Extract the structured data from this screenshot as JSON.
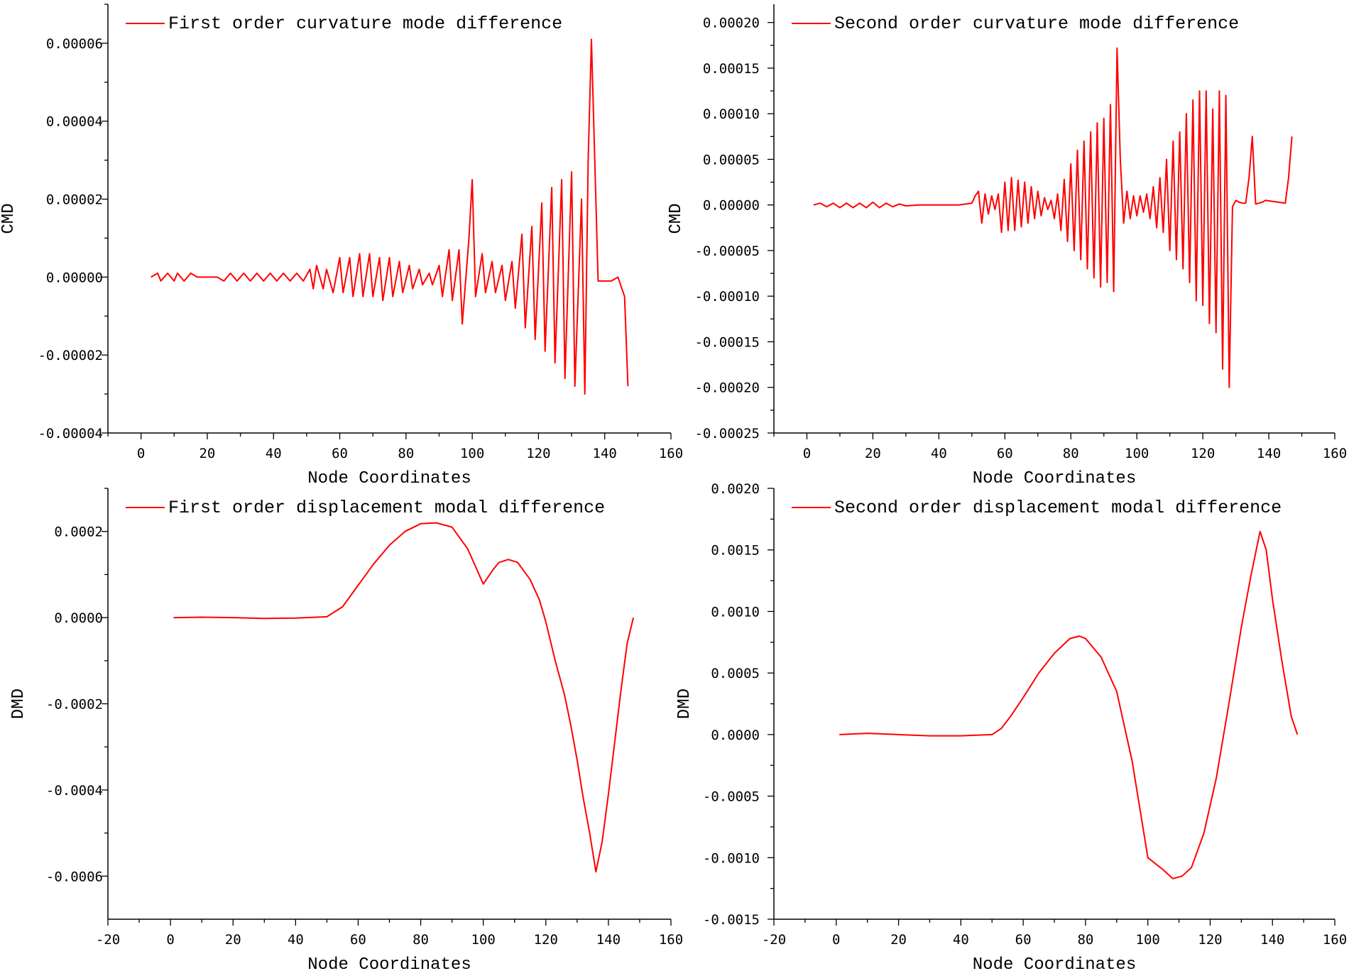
{
  "chart_data": [
    {
      "type": "line",
      "xlabel": "Node Coordinates",
      "ylabel": "CMD",
      "xlim": [
        -10,
        160
      ],
      "ylim": [
        -4e-05,
        7e-05
      ],
      "xticks": [
        0,
        20,
        40,
        60,
        80,
        100,
        120,
        140,
        160
      ],
      "xtick_labels": [
        "0",
        "20",
        "40",
        "60",
        "80",
        "100",
        "120",
        "140",
        "160"
      ],
      "yticks": [
        -4e-05,
        -2e-05,
        0,
        2e-05,
        4e-05,
        6e-05
      ],
      "ytick_labels": [
        "-0.00004",
        "-0.00002",
        "0.00000",
        "0.00002",
        "0.00004",
        "0.00006"
      ],
      "legend": "top-left",
      "series": [
        {
          "name": "First order curvature mode difference",
          "color": "#ff0000",
          "x": [
            3,
            5,
            6,
            8,
            10,
            11,
            13,
            15,
            17,
            19,
            21,
            23,
            25,
            27,
            29,
            31,
            33,
            35,
            37,
            39,
            41,
            43,
            45,
            47,
            49,
            51,
            52,
            53,
            55,
            56,
            58,
            60,
            61,
            63,
            64,
            66,
            67,
            69,
            70,
            72,
            73,
            75,
            76,
            78,
            79,
            81,
            82,
            84,
            85,
            87,
            88,
            90,
            91,
            93,
            94,
            96,
            97,
            99,
            100,
            101,
            103,
            104,
            106,
            107,
            109,
            110,
            112,
            113,
            115,
            116,
            118,
            119,
            121,
            122,
            124,
            125,
            127,
            128,
            130,
            131,
            133,
            134,
            135,
            136,
            137,
            138,
            140,
            142,
            144,
            146,
            147
          ],
          "values": [
            0,
            1e-06,
            -1e-06,
            1e-06,
            -1e-06,
            1e-06,
            -1e-06,
            1e-06,
            0,
            0,
            0,
            0,
            -1e-06,
            1e-06,
            -1e-06,
            1e-06,
            -1e-06,
            1e-06,
            -1e-06,
            1e-06,
            -1e-06,
            1e-06,
            -1e-06,
            1e-06,
            -1e-06,
            2e-06,
            -3e-06,
            3e-06,
            -3e-06,
            2e-06,
            -4e-06,
            5e-06,
            -4e-06,
            5e-06,
            -5e-06,
            6e-06,
            -5e-06,
            6e-06,
            -5e-06,
            5e-06,
            -6e-06,
            5e-06,
            -5e-06,
            4e-06,
            -4e-06,
            3e-06,
            -3e-06,
            2e-06,
            -2e-06,
            1e-06,
            -2e-06,
            3e-06,
            -5e-06,
            7e-06,
            -6e-06,
            7e-06,
            -1.2e-05,
            1e-05,
            2.5e-05,
            -5e-06,
            6e-06,
            -4e-06,
            4e-06,
            -4e-06,
            3e-06,
            -6e-06,
            4e-06,
            -8e-06,
            1.1e-05,
            -1.3e-05,
            1.3e-05,
            -1.6e-05,
            1.9e-05,
            -1.9e-05,
            2.3e-05,
            -2.2e-05,
            2.5e-05,
            -2.6e-05,
            2.7e-05,
            -2.8e-05,
            2e-05,
            -3e-05,
            3e-05,
            6.1e-05,
            3e-05,
            -1e-06,
            -1e-06,
            -1e-06,
            0,
            -5e-06,
            -2.8e-05
          ]
        }
      ]
    },
    {
      "type": "line",
      "xlabel": "Node Coordinates",
      "ylabel": "CMD",
      "xlim": [
        -10,
        160
      ],
      "ylim": [
        -0.00025,
        0.00022
      ],
      "xticks": [
        0,
        20,
        40,
        60,
        80,
        100,
        120,
        140,
        160
      ],
      "xtick_labels": [
        "0",
        "20",
        "40",
        "60",
        "80",
        "100",
        "120",
        "140",
        "160"
      ],
      "yticks": [
        -0.00025,
        -0.0002,
        -0.00015,
        -0.0001,
        -5e-05,
        0,
        5e-05,
        0.0001,
        0.00015,
        0.0002
      ],
      "ytick_labels": [
        "-0.00025",
        "-0.00020",
        "-0.00015",
        "-0.00010",
        "-0.00005",
        "0.00000",
        "0.00005",
        "0.00010",
        "0.00015",
        "0.00020"
      ],
      "legend": "top-left",
      "series": [
        {
          "name": "Second order curvature mode difference",
          "color": "#ff0000",
          "x": [
            2,
            4,
            6,
            8,
            10,
            12,
            14,
            16,
            18,
            20,
            22,
            24,
            26,
            28,
            30,
            34,
            38,
            42,
            46,
            50,
            51,
            52,
            53,
            54,
            55,
            56,
            57,
            58,
            59,
            60,
            61,
            62,
            63,
            64,
            65,
            66,
            67,
            68,
            69,
            70,
            71,
            72,
            73,
            74,
            75,
            76,
            77,
            78,
            79,
            80,
            81,
            82,
            83,
            84,
            85,
            86,
            87,
            88,
            89,
            90,
            91,
            92,
            93,
            94,
            95,
            96,
            97,
            98,
            99,
            100,
            101,
            102,
            103,
            104,
            105,
            106,
            107,
            108,
            109,
            110,
            111,
            112,
            113,
            114,
            115,
            116,
            117,
            118,
            119,
            120,
            121,
            122,
            123,
            124,
            125,
            126,
            127,
            128,
            129,
            130,
            131,
            132,
            133,
            134,
            135,
            136,
            137,
            138,
            139,
            141,
            143,
            145,
            146,
            147
          ],
          "values": [
            0,
            2e-06,
            -2e-06,
            2e-06,
            -3e-06,
            2e-06,
            -3e-06,
            2e-06,
            -3e-06,
            3e-06,
            -3e-06,
            2e-06,
            -2e-06,
            1e-06,
            -1e-06,
            0,
            0,
            0,
            0,
            2e-06,
            1e-05,
            1.5e-05,
            -2e-05,
            1.2e-05,
            -1e-05,
            1e-05,
            -5e-06,
            1.2e-05,
            -3e-05,
            2.5e-05,
            -2.8e-05,
            3e-05,
            -2.8e-05,
            2.7e-05,
            -2.4e-05,
            2.5e-05,
            -2e-05,
            2e-05,
            -1.5e-05,
            1.5e-05,
            -1.2e-05,
            8e-06,
            -5e-06,
            5e-06,
            -1.5e-05,
            1.2e-05,
            -2.8e-05,
            2.8e-05,
            -4e-05,
            4.5e-05,
            -5e-05,
            6e-05,
            -6e-05,
            7e-05,
            -7e-05,
            8e-05,
            -8e-05,
            9e-05,
            -9e-05,
            9.5e-05,
            -8.5e-05,
            0.00011,
            -9.5e-05,
            0.000172,
            5e-05,
            -2e-05,
            1.5e-05,
            -1.5e-05,
            1e-05,
            -1.2e-05,
            1e-05,
            -8e-06,
            1.2e-05,
            -1.5e-05,
            2e-05,
            -2.5e-05,
            3e-05,
            -3e-05,
            5e-05,
            -5e-05,
            7e-05,
            -6e-05,
            8e-05,
            -7e-05,
            0.0001,
            -8.5e-05,
            0.000115,
            -0.000105,
            0.000125,
            -0.00011,
            0.000125,
            -0.00013,
            0.000105,
            -0.00014,
            0.000125,
            -0.00018,
            0.00012,
            -0.0002,
            -2e-06,
            5e-06,
            3e-06,
            2e-06,
            2e-06,
            3e-05,
            7.5e-05,
            1e-06,
            2e-06,
            3e-06,
            5e-06,
            4e-06,
            3e-06,
            2e-06,
            3e-05,
            7.5e-05
          ]
        }
      ]
    },
    {
      "type": "line",
      "xlabel": "Node Coordinates",
      "ylabel": "DMD",
      "xlim": [
        -20,
        160
      ],
      "ylim": [
        -0.0007,
        0.0003
      ],
      "xticks": [
        -20,
        0,
        20,
        40,
        60,
        80,
        100,
        120,
        140,
        160
      ],
      "xtick_labels": [
        "-20",
        "0",
        "20",
        "40",
        "60",
        "80",
        "100",
        "120",
        "140",
        "160"
      ],
      "yticks": [
        -0.0006,
        -0.0004,
        -0.0002,
        0,
        0.0002
      ],
      "ytick_labels": [
        "-0.0006",
        "-0.0004",
        "-0.0002",
        "0.0000",
        "0.0002"
      ],
      "legend": "top-left",
      "series": [
        {
          "name": "First order displacement modal difference",
          "color": "#ff0000",
          "x": [
            1,
            10,
            20,
            30,
            40,
            50,
            55,
            60,
            65,
            70,
            75,
            80,
            85,
            90,
            95,
            100,
            103,
            105,
            108,
            111,
            115,
            118,
            120,
            123,
            126,
            128,
            130,
            132,
            134,
            136,
            138,
            140,
            142,
            144,
            146,
            148
          ],
          "values": [
            0,
            1e-06,
            0,
            -2e-06,
            -1e-06,
            2e-06,
            2.5e-05,
            7.5e-05,
            0.000125,
            0.000168,
            0.0002,
            0.000218,
            0.00022,
            0.00021,
            0.00016,
            7.8e-05,
            0.00011,
            0.000128,
            0.000135,
            0.000128,
            8.8e-05,
            4e-05,
            -1e-05,
            -0.0001,
            -0.00018,
            -0.00025,
            -0.00033,
            -0.00042,
            -0.0005,
            -0.00059,
            -0.00052,
            -0.00041,
            -0.00029,
            -0.00017,
            -6e-05,
            0
          ]
        }
      ]
    },
    {
      "type": "line",
      "xlabel": "Node Coordinates",
      "ylabel": "DMD",
      "xlim": [
        -20,
        160
      ],
      "ylim": [
        -0.0015,
        0.002
      ],
      "xticks": [
        -20,
        0,
        20,
        40,
        60,
        80,
        100,
        120,
        140,
        160
      ],
      "xtick_labels": [
        "-20",
        "0",
        "20",
        "40",
        "60",
        "80",
        "100",
        "120",
        "140",
        "160"
      ],
      "yticks": [
        -0.0015,
        -0.001,
        -0.0005,
        0,
        0.0005,
        0.001,
        0.0015,
        0.002
      ],
      "ytick_labels": [
        "-0.0015",
        "-0.0010",
        "-0.0005",
        "0.0000",
        "0.0005",
        "0.0010",
        "0.0015",
        "0.0020"
      ],
      "legend": "top-left",
      "series": [
        {
          "name": "Second order displacement modal difference",
          "color": "#ff0000",
          "x": [
            1,
            10,
            20,
            30,
            40,
            50,
            53,
            56,
            60,
            65,
            70,
            75,
            78,
            80,
            85,
            90,
            95,
            100,
            105,
            108,
            111,
            114,
            118,
            122,
            126,
            130,
            133,
            136,
            138,
            140,
            143,
            146,
            148
          ],
          "values": [
            0,
            1e-05,
            0,
            -1e-05,
            -1e-05,
            0,
            5e-05,
            0.00015,
            0.0003,
            0.0005,
            0.00066,
            0.00078,
            0.0008,
            0.00078,
            0.00063,
            0.00035,
            -0.00022,
            -0.001,
            -0.0011,
            -0.00117,
            -0.00115,
            -0.00108,
            -0.0008,
            -0.00035,
            0.00025,
            0.00087,
            0.00128,
            0.00165,
            0.0015,
            0.0011,
            0.0006,
            0.00015,
            0
          ]
        }
      ]
    }
  ]
}
